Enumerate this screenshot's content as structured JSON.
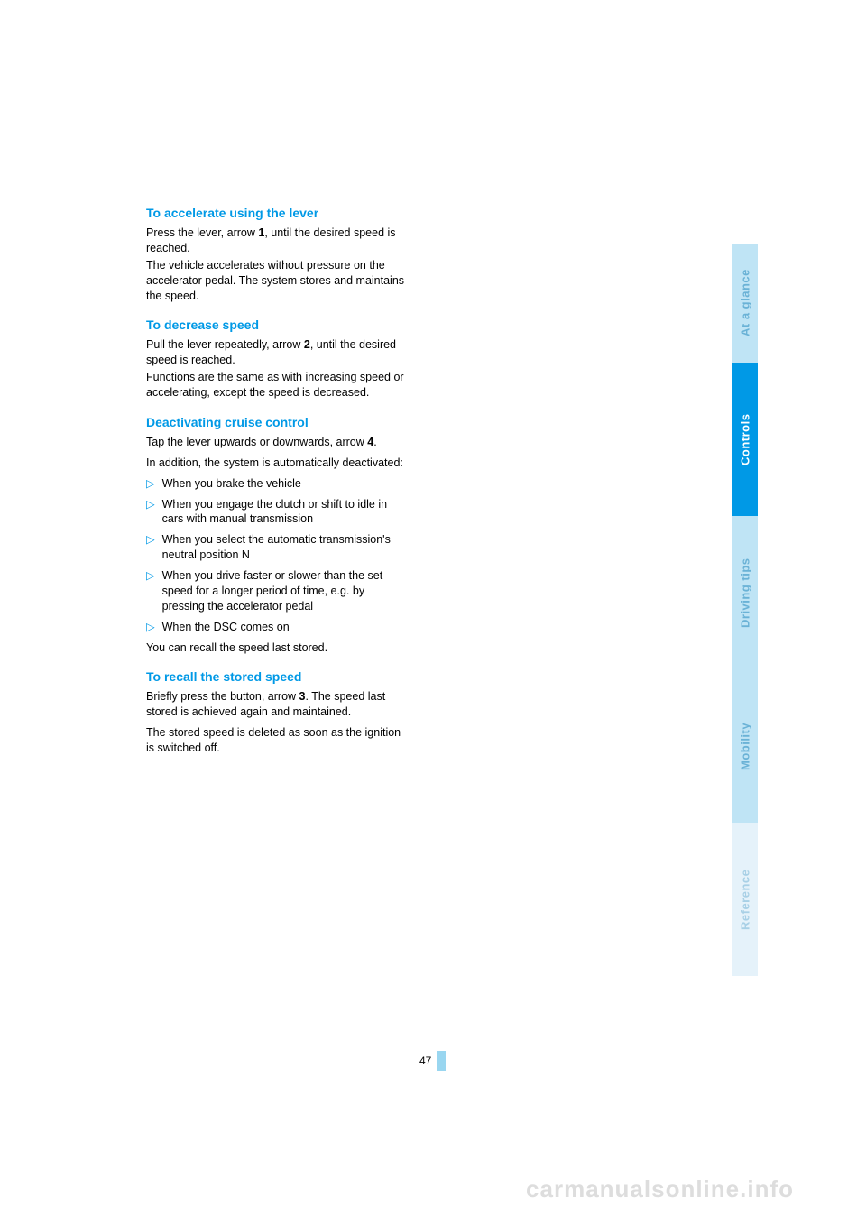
{
  "sections": {
    "accelerate": {
      "title": "To accelerate using the lever",
      "p1a": "Press the lever, arrow ",
      "p1bold": "1",
      "p1b": ", until the desired speed is reached.",
      "p2": "The vehicle accelerates without pressure on the accelerator pedal. The system stores and maintains the speed."
    },
    "decrease": {
      "title": "To decrease speed",
      "p1a": "Pull the lever repeatedly, arrow ",
      "p1bold": "2",
      "p1b": ", until the desired speed is reached.",
      "p2": "Functions are the same as with increasing speed or accelerating, except the speed is decreased."
    },
    "deactivate": {
      "title": "Deactivating cruise control",
      "p1a": "Tap the lever upwards or downwards, arrow ",
      "p1bold": "4",
      "p1b": ".",
      "p2": "In addition, the system is automatically deactivated:",
      "items": [
        "When you brake the vehicle",
        "When you engage the clutch or shift to idle in cars with manual transmission",
        "When you select the automatic transmission's neutral position N",
        "When you drive faster or slower than the set speed for a longer period of time, e.g. by pressing the accelerator pedal",
        "When the DSC comes on"
      ],
      "p3": "You can recall the speed last stored."
    },
    "recall": {
      "title": "To recall the stored speed",
      "p1a": "Briefly press the button, arrow ",
      "p1bold": "3",
      "p1b": ". The speed last stored is achieved again and maintained.",
      "p2": "The stored speed is deleted as soon as the ignition is switched off."
    }
  },
  "tabs": [
    "At a glance",
    "Controls",
    "Driving tips",
    "Mobility",
    "Reference"
  ],
  "page_number": "47",
  "watermark": "carmanualsonline.info",
  "bullet_glyph": "▷",
  "colors": {
    "heading": "#0099e6",
    "tab_active_bg": "#0099e6",
    "tab_inactive_bg": "#bfe4f5",
    "tab_faint_bg": "#e5f2fa"
  }
}
